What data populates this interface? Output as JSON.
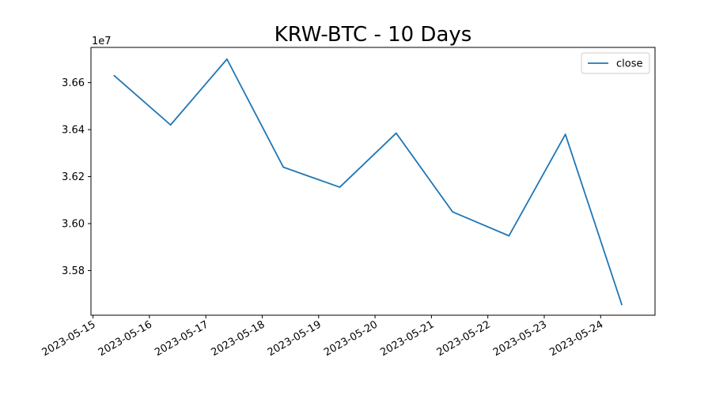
{
  "chart_data": {
    "type": "line",
    "title": "KRW-BTC - 10 Days",
    "xlabel": "",
    "ylabel": "",
    "y_offset_label": "1e7",
    "x_tick_labels": [
      "2023-05-15",
      "2023-05-16",
      "2023-05-17",
      "2023-05-18",
      "2023-05-19",
      "2023-05-20",
      "2023-05-21",
      "2023-05-22",
      "2023-05-23",
      "2023-05-24"
    ],
    "y_ticks": [
      35800000,
      36000000,
      36200000,
      36400000,
      36600000
    ],
    "y_tick_labels": [
      "3.58",
      "3.60",
      "3.62",
      "3.64",
      "3.66"
    ],
    "ylim": [
      35610000,
      36750000
    ],
    "xlim": [
      "2023-05-14 23:08",
      "2023-05-24 23:08"
    ],
    "grid": false,
    "legend_position": "upper right",
    "series": [
      {
        "name": "close",
        "color": "#1f77b4",
        "x": [
          "2023-05-15 09:00",
          "2023-05-16 09:00",
          "2023-05-17 09:00",
          "2023-05-18 09:00",
          "2023-05-19 09:00",
          "2023-05-20 09:00",
          "2023-05-21 09:00",
          "2023-05-22 09:00",
          "2023-05-23 09:00",
          "2023-05-24 09:00"
        ],
        "values": [
          36630000,
          36420000,
          36700000,
          36240000,
          36155000,
          36385000,
          36050000,
          35948000,
          36380000,
          35655000
        ]
      }
    ]
  }
}
